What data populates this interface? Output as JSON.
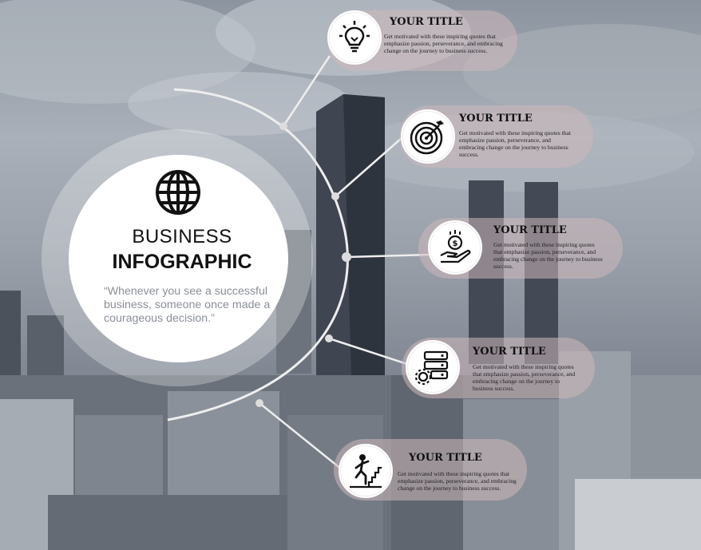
{
  "main": {
    "title_line1": "BUSINESS",
    "title_line2": "INFOGRAPHIC",
    "quote": "“Whenever you see a successful business, someone once made a courageous decision.”"
  },
  "items": [
    {
      "title": "YOUR TITLE",
      "text": "Get motivated with these inspiring quotes that emphasize passion, perseverance, and embracing change on the journey to business success.",
      "icon": "lightbulb-icon"
    },
    {
      "title": "YOUR TITLE",
      "text": "Get motivated with these inspiring quotes that emphasize passion, perseverance, and embracing change on the journey to business success.",
      "icon": "target-icon"
    },
    {
      "title": "YOUR TITLE",
      "text": "Get motivated with these inspiring quotes that emphasize passion, perseverance, and embracing change on the journey to business success.",
      "icon": "money-hand-icon"
    },
    {
      "title": "YOUR TITLE",
      "text": "Get motivated with these inspiring quotes that emphasize passion, perseverance, and embracing change on the journey to business success.",
      "icon": "server-gear-icon"
    },
    {
      "title": "YOUR TITLE",
      "text": "Get motivated with these inspiring quotes that emphasize passion, perseverance, and embracing change on the journey to business success.",
      "icon": "climbing-person-icon"
    }
  ],
  "colors": {
    "card_fill": "#cdb8bc",
    "main_circle": "#ffffff",
    "connector": "#eeeeee"
  }
}
